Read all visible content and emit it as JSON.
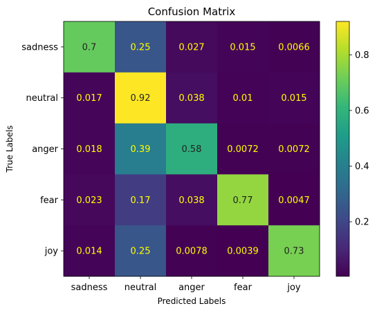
{
  "chart_data": {
    "type": "heatmap",
    "title": "Confusion Matrix",
    "xlabel": "Predicted Labels",
    "ylabel": "True Labels",
    "x_categories": [
      "sadness",
      "neutral",
      "anger",
      "fear",
      "joy"
    ],
    "y_categories": [
      "sadness",
      "neutral",
      "anger",
      "fear",
      "joy"
    ],
    "values": [
      [
        0.7,
        0.25,
        0.027,
        0.015,
        0.0066
      ],
      [
        0.017,
        0.92,
        0.038,
        0.01,
        0.015
      ],
      [
        0.018,
        0.39,
        0.58,
        0.0072,
        0.0072
      ],
      [
        0.023,
        0.17,
        0.038,
        0.77,
        0.0047
      ],
      [
        0.014,
        0.25,
        0.0078,
        0.0039,
        0.73
      ]
    ],
    "value_labels": [
      [
        "0.7",
        "0.25",
        "0.027",
        "0.015",
        "0.0066"
      ],
      [
        "0.017",
        "0.92",
        "0.038",
        "0.01",
        "0.015"
      ],
      [
        "0.018",
        "0.39",
        "0.58",
        "0.0072",
        "0.0072"
      ],
      [
        "0.023",
        "0.17",
        "0.038",
        "0.77",
        "0.0047"
      ],
      [
        "0.014",
        "0.25",
        "0.0078",
        "0.0039",
        "0.73"
      ]
    ],
    "colormap": "viridis",
    "color_range": [
      0.0039,
      0.92
    ],
    "colorbar_ticks": [
      "0.2",
      "0.4",
      "0.6",
      "0.8"
    ],
    "colorbar_tick_values": [
      0.2,
      0.4,
      0.6,
      0.8
    ],
    "text_colors": {
      "on_dark": "#ffff00",
      "on_light": "#222222"
    }
  }
}
